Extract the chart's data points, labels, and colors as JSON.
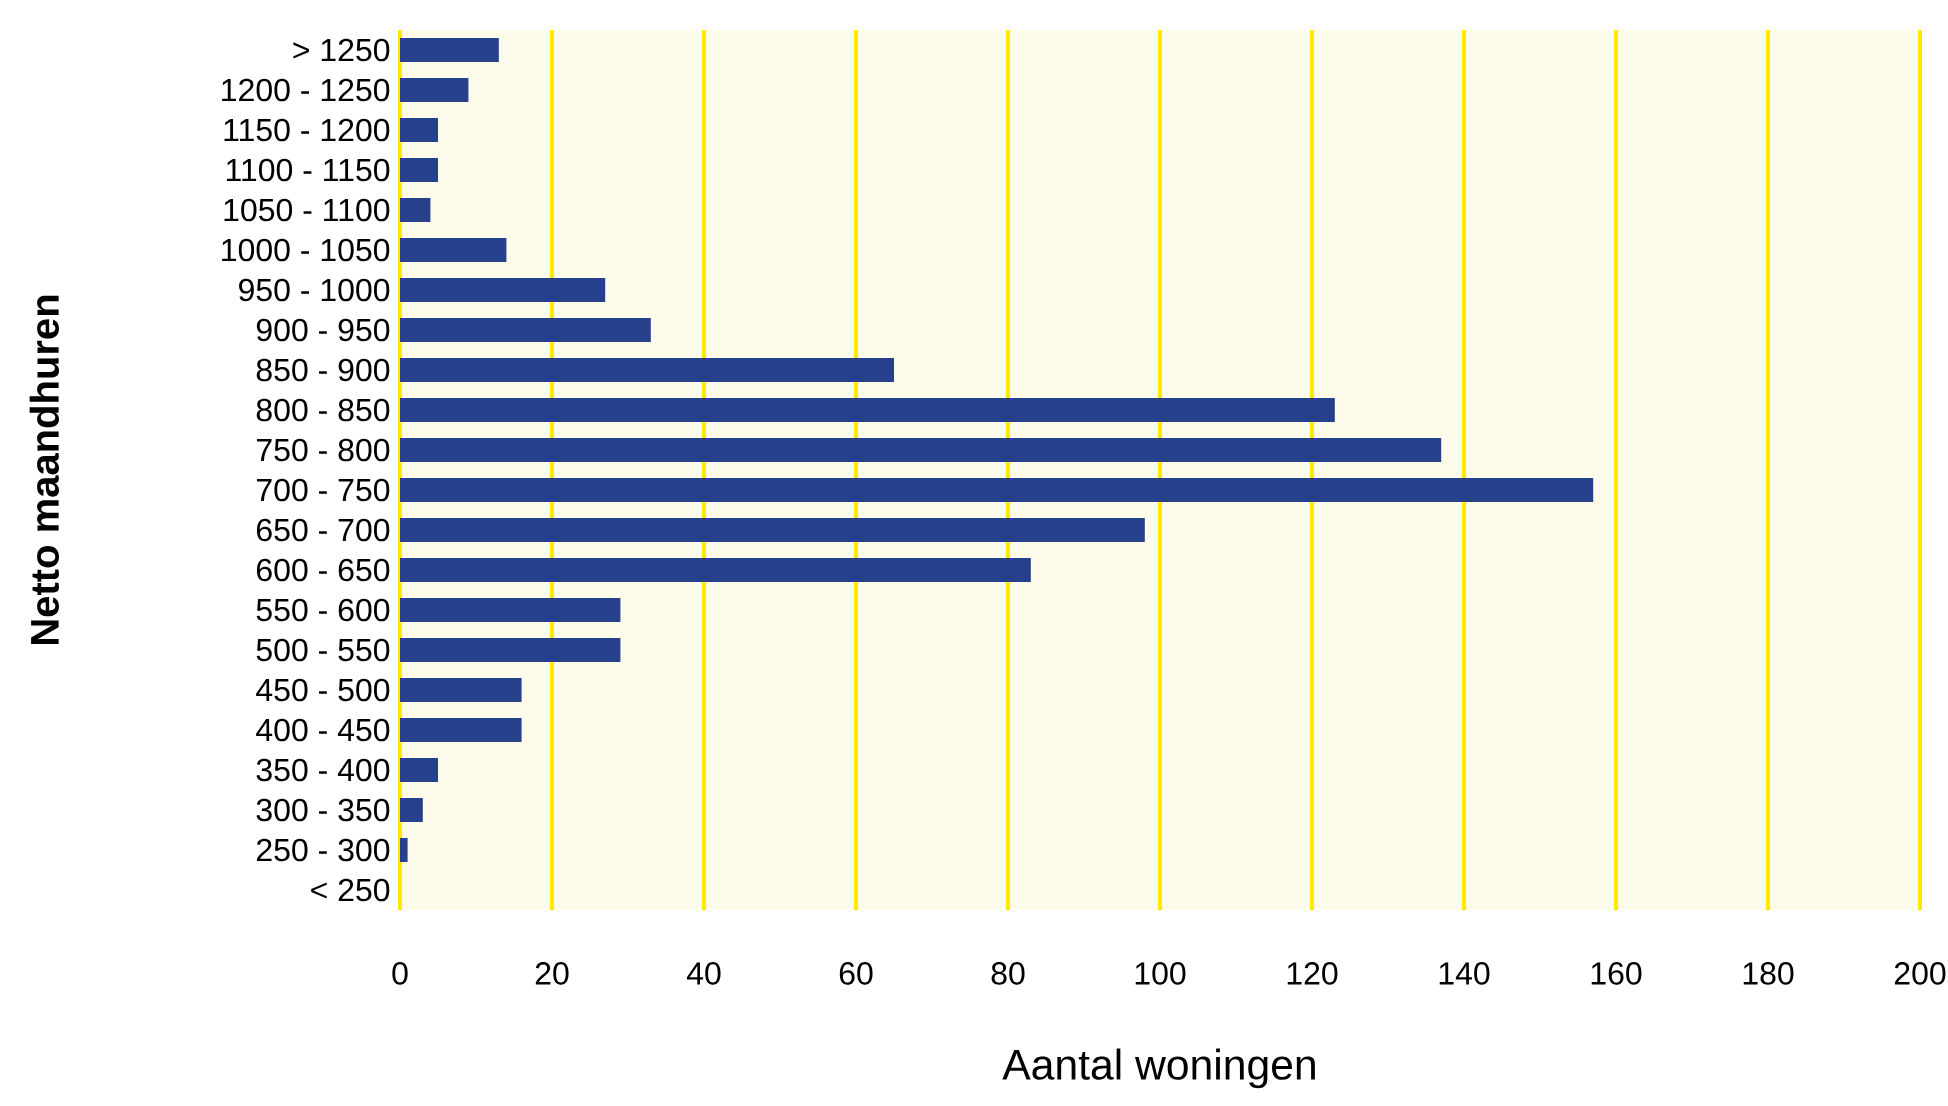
{
  "chart_data": {
    "type": "bar",
    "orientation": "horizontal",
    "xlabel": "Aantal woningen",
    "ylabel": "Netto maandhuren",
    "categories": [
      "> 1250",
      "1200 - 1250",
      "1150 - 1200",
      "1100 - 1150",
      "1050 - 1100",
      "1000 - 1050",
      "950 - 1000",
      "900 - 950",
      "850 - 900",
      "800 - 850",
      "750 - 800",
      "700 - 750",
      "650 - 700",
      "600 - 650",
      "550 - 600",
      "500 - 550",
      "450 - 500",
      "400 - 450",
      "350 - 400",
      "300 - 350",
      "250 - 300",
      "< 250"
    ],
    "values": [
      13,
      9,
      5,
      5,
      4,
      14,
      27,
      33,
      65,
      123,
      137,
      157,
      98,
      83,
      29,
      29,
      16,
      16,
      5,
      3,
      1,
      0
    ],
    "color": "#27408b",
    "xlim": [
      0,
      200
    ],
    "xticks": [
      0,
      20,
      40,
      60,
      80,
      100,
      120,
      140,
      160,
      180,
      200
    ],
    "grid": "x"
  }
}
